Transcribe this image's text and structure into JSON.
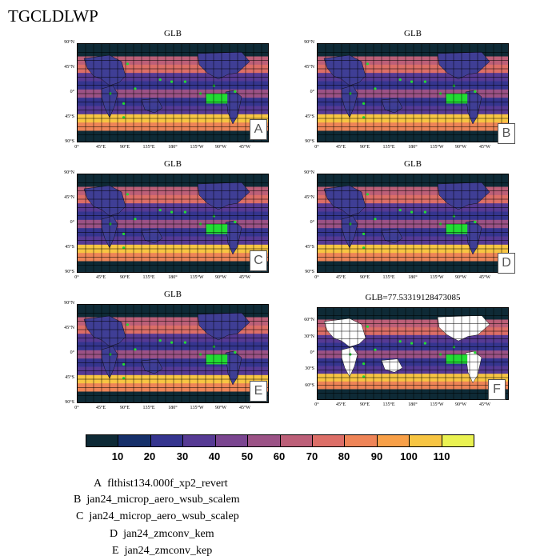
{
  "title": "TGCLDLWP",
  "panels": [
    {
      "id": "A",
      "title": "GLB",
      "letter": "A"
    },
    {
      "id": "B",
      "title": "GLB",
      "letter": "B"
    },
    {
      "id": "C",
      "title": "GLB",
      "letter": "C"
    },
    {
      "id": "D",
      "title": "GLB",
      "letter": "D"
    },
    {
      "id": "E",
      "title": "GLB",
      "letter": "E"
    },
    {
      "id": "F",
      "title": "GLB=77.53319128473085",
      "letter": "F"
    }
  ],
  "lat_labels": [
    "90°N",
    "45°N",
    "0°",
    "45°S",
    "90°S"
  ],
  "lat_labels_f": [
    "60°N",
    "30°N",
    "0°",
    "30°S",
    "60°S"
  ],
  "lon_labels": [
    "0°",
    "45°E",
    "90°E",
    "135°E",
    "180°",
    "135°W",
    "90°W",
    "45°W"
  ],
  "colorbar": {
    "labels": [
      "10",
      "20",
      "30",
      "40",
      "50",
      "60",
      "70",
      "80",
      "90",
      "100",
      "110"
    ],
    "colors": [
      "#0e2a36",
      "#16306a",
      "#35358f",
      "#563a94",
      "#7a4590",
      "#9b5286",
      "#bc5f78",
      "#dc6e67",
      "#ee8457",
      "#f8a048",
      "#f7c543",
      "#eaf252"
    ]
  },
  "legend": [
    {
      "letter": "A",
      "text": "flthist134.000f_xp2_revert"
    },
    {
      "letter": "B",
      "text": "jan24_microp_aero_wsub_scalem"
    },
    {
      "letter": "C",
      "text": "jan24_microp_aero_wsub_scalep"
    },
    {
      "letter": "D",
      "text": "jan24_zmconv_kem"
    },
    {
      "letter": "E",
      "text": "jan24_zmconv_kep"
    }
  ]
}
